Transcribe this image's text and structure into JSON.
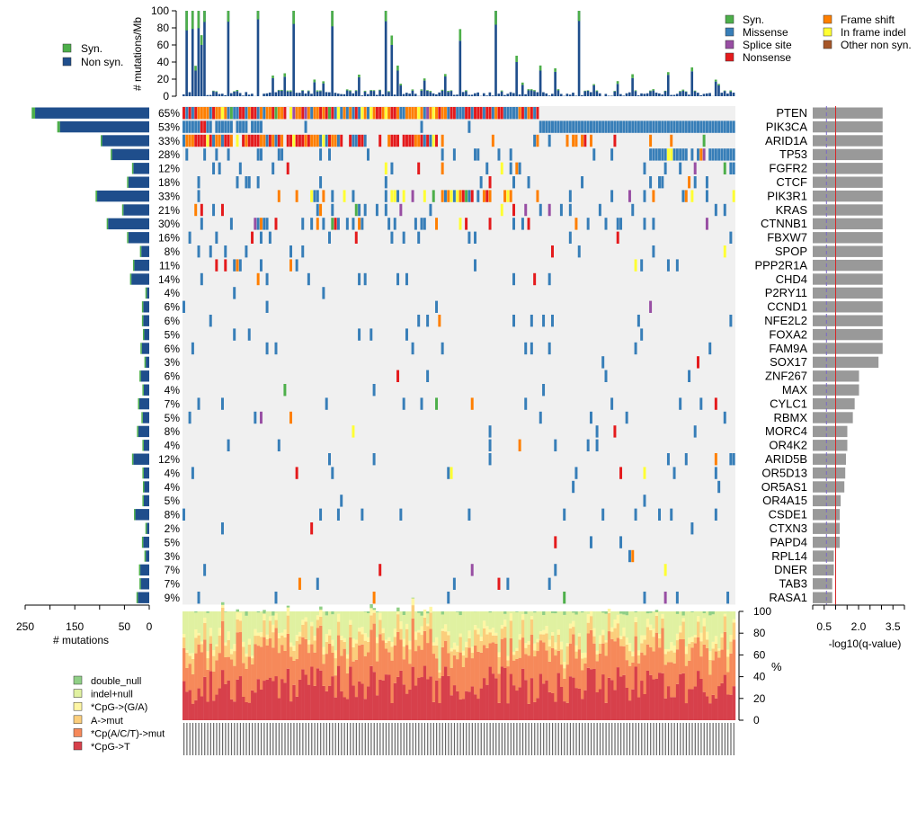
{
  "chart_data": {
    "type": "oncoplot",
    "top_panel": {
      "ylabel": "# mutations/Mb",
      "yticks": [
        0,
        20,
        40,
        60,
        80,
        100
      ],
      "ylim": [
        0,
        100
      ],
      "legend": [
        "Syn.",
        "Non syn."
      ]
    },
    "mutation_legend": {
      "left": [
        "Syn.",
        "Missense",
        "Splice site",
        "Nonsense"
      ],
      "right": [
        "Frame shift",
        "In frame indel",
        "Other non syn."
      ]
    },
    "genes": [
      "PTEN",
      "PIK3CA",
      "ARID1A",
      "TP53",
      "FGFR2",
      "CTCF",
      "PIK3R1",
      "KRAS",
      "CTNNB1",
      "FBXW7",
      "SPOP",
      "PPP2R1A",
      "CHD4",
      "P2RY11",
      "CCND1",
      "NFE2L2",
      "FOXA2",
      "FAM9A",
      "SOX17",
      "ZNF267",
      "MAX",
      "CYLC1",
      "RBMX",
      "MORC4",
      "OR4K2",
      "ARID5B",
      "OR5D13",
      "OR5AS1",
      "OR4A15",
      "CSDE1",
      "CTXN3",
      "PAPD4",
      "RPL14",
      "DNER",
      "TAB3",
      "RASA1"
    ],
    "percent_labels": [
      "65%",
      "53%",
      "33%",
      "28%",
      "12%",
      "18%",
      "33%",
      "21%",
      "30%",
      "16%",
      "8%",
      "11%",
      "14%",
      "4%",
      "6%",
      "6%",
      "5%",
      "6%",
      "3%",
      "6%",
      "4%",
      "7%",
      "5%",
      "8%",
      "4%",
      "12%",
      "4%",
      "4%",
      "5%",
      "8%",
      "2%",
      "5%",
      "3%",
      "7%",
      "7%",
      "9%"
    ],
    "mutation_counts": [
      230,
      180,
      95,
      75,
      32,
      42,
      105,
      52,
      83,
      42,
      16,
      30,
      36,
      5,
      12,
      12,
      10,
      15,
      7,
      17,
      11,
      20,
      13,
      22,
      11,
      32,
      11,
      10,
      11,
      28,
      5,
      12,
      7,
      18,
      17,
      23
    ],
    "neg_log10_q": [
      3.05,
      3.05,
      3.05,
      3.05,
      3.05,
      3.05,
      3.05,
      3.05,
      3.05,
      3.05,
      3.05,
      3.05,
      3.05,
      3.05,
      3.05,
      3.05,
      3.05,
      3.05,
      2.87,
      2.02,
      2.02,
      1.83,
      1.75,
      1.51,
      1.51,
      1.45,
      1.42,
      1.38,
      1.22,
      1.18,
      1.18,
      1.18,
      0.92,
      0.92,
      0.85,
      0.85
    ],
    "left_axis": {
      "label": "# mutations",
      "ticks": [
        250,
        150,
        50,
        0
      ],
      "ticks_minor": [
        200,
        100
      ]
    },
    "right_axis": {
      "label": "-log10(q-value)",
      "ticks": [
        "0.5",
        "2.0",
        "3.5"
      ],
      "range": [
        0,
        4.0
      ]
    },
    "bottom_panel": {
      "ylabel": "%",
      "yticks": [
        0,
        20,
        40,
        60,
        80,
        100
      ],
      "categories": [
        "*CpG->T",
        "*Cp(A/C/T)->mut",
        "A->mut",
        "*CpG->(G/A)",
        "indel+null",
        "double_null"
      ],
      "legend_order": [
        "double_null",
        "indel+null",
        "*CpG->(G/A)",
        "A->mut",
        "*Cp(A/C/T)->mut",
        "*CpG->T"
      ]
    },
    "colors": {
      "syn": "#4DAF4A",
      "missense": "#377EB8",
      "splice_site": "#984EA3",
      "nonsense": "#E41A1C",
      "frame_shift": "#FF7F00",
      "in_frame_indel": "#FFFF33",
      "other_non_syn": "#A65628",
      "non_syn_bar": "#1F4E8C",
      "background": "#F0F0F0",
      "qbar": "#999999",
      "cpg_t": "#D7404B",
      "cp_act": "#F6895A",
      "a_mut": "#FBCE7C",
      "cpg_ga": "#FEF6A4",
      "indel_null": "#E0F1A1",
      "double_null": "#90CF86"
    }
  }
}
